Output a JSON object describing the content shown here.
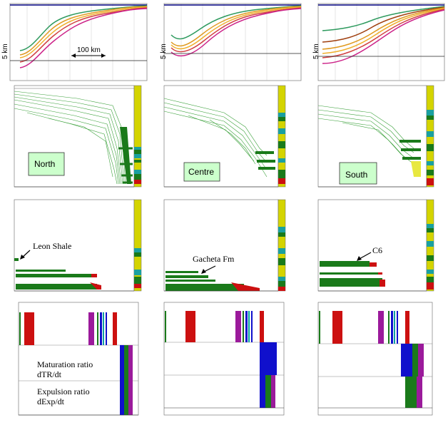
{
  "top_row": {
    "depth_label": "5 km",
    "scale_label": "100 km"
  },
  "regions": {
    "north_label": "North",
    "centre_label": "Centre",
    "south_label": "South"
  },
  "expulsion": {
    "north_annotation": "Leon Shale",
    "centre_annotation": "Gacheta Fm",
    "south_annotation": "C6"
  },
  "rates": {
    "maturation_line1": "Maturation ratio",
    "maturation_line2": "dTR/dt",
    "expulsion_line1": "Expulsion ratio",
    "expulsion_line2": "dExp/dt"
  },
  "colors": {
    "green": "#1a7a1a",
    "light_green": "#2e9a2e",
    "yellow_column": "#d4d400",
    "red": "#cc1010",
    "purple": "#9b1a9b",
    "blue": "#1010cc",
    "teal": "#00a0a0",
    "region_box": "#ccffcc",
    "navy_top": "#000080"
  },
  "icons": {
    "arrow": "pointer-arrow-icon"
  }
}
